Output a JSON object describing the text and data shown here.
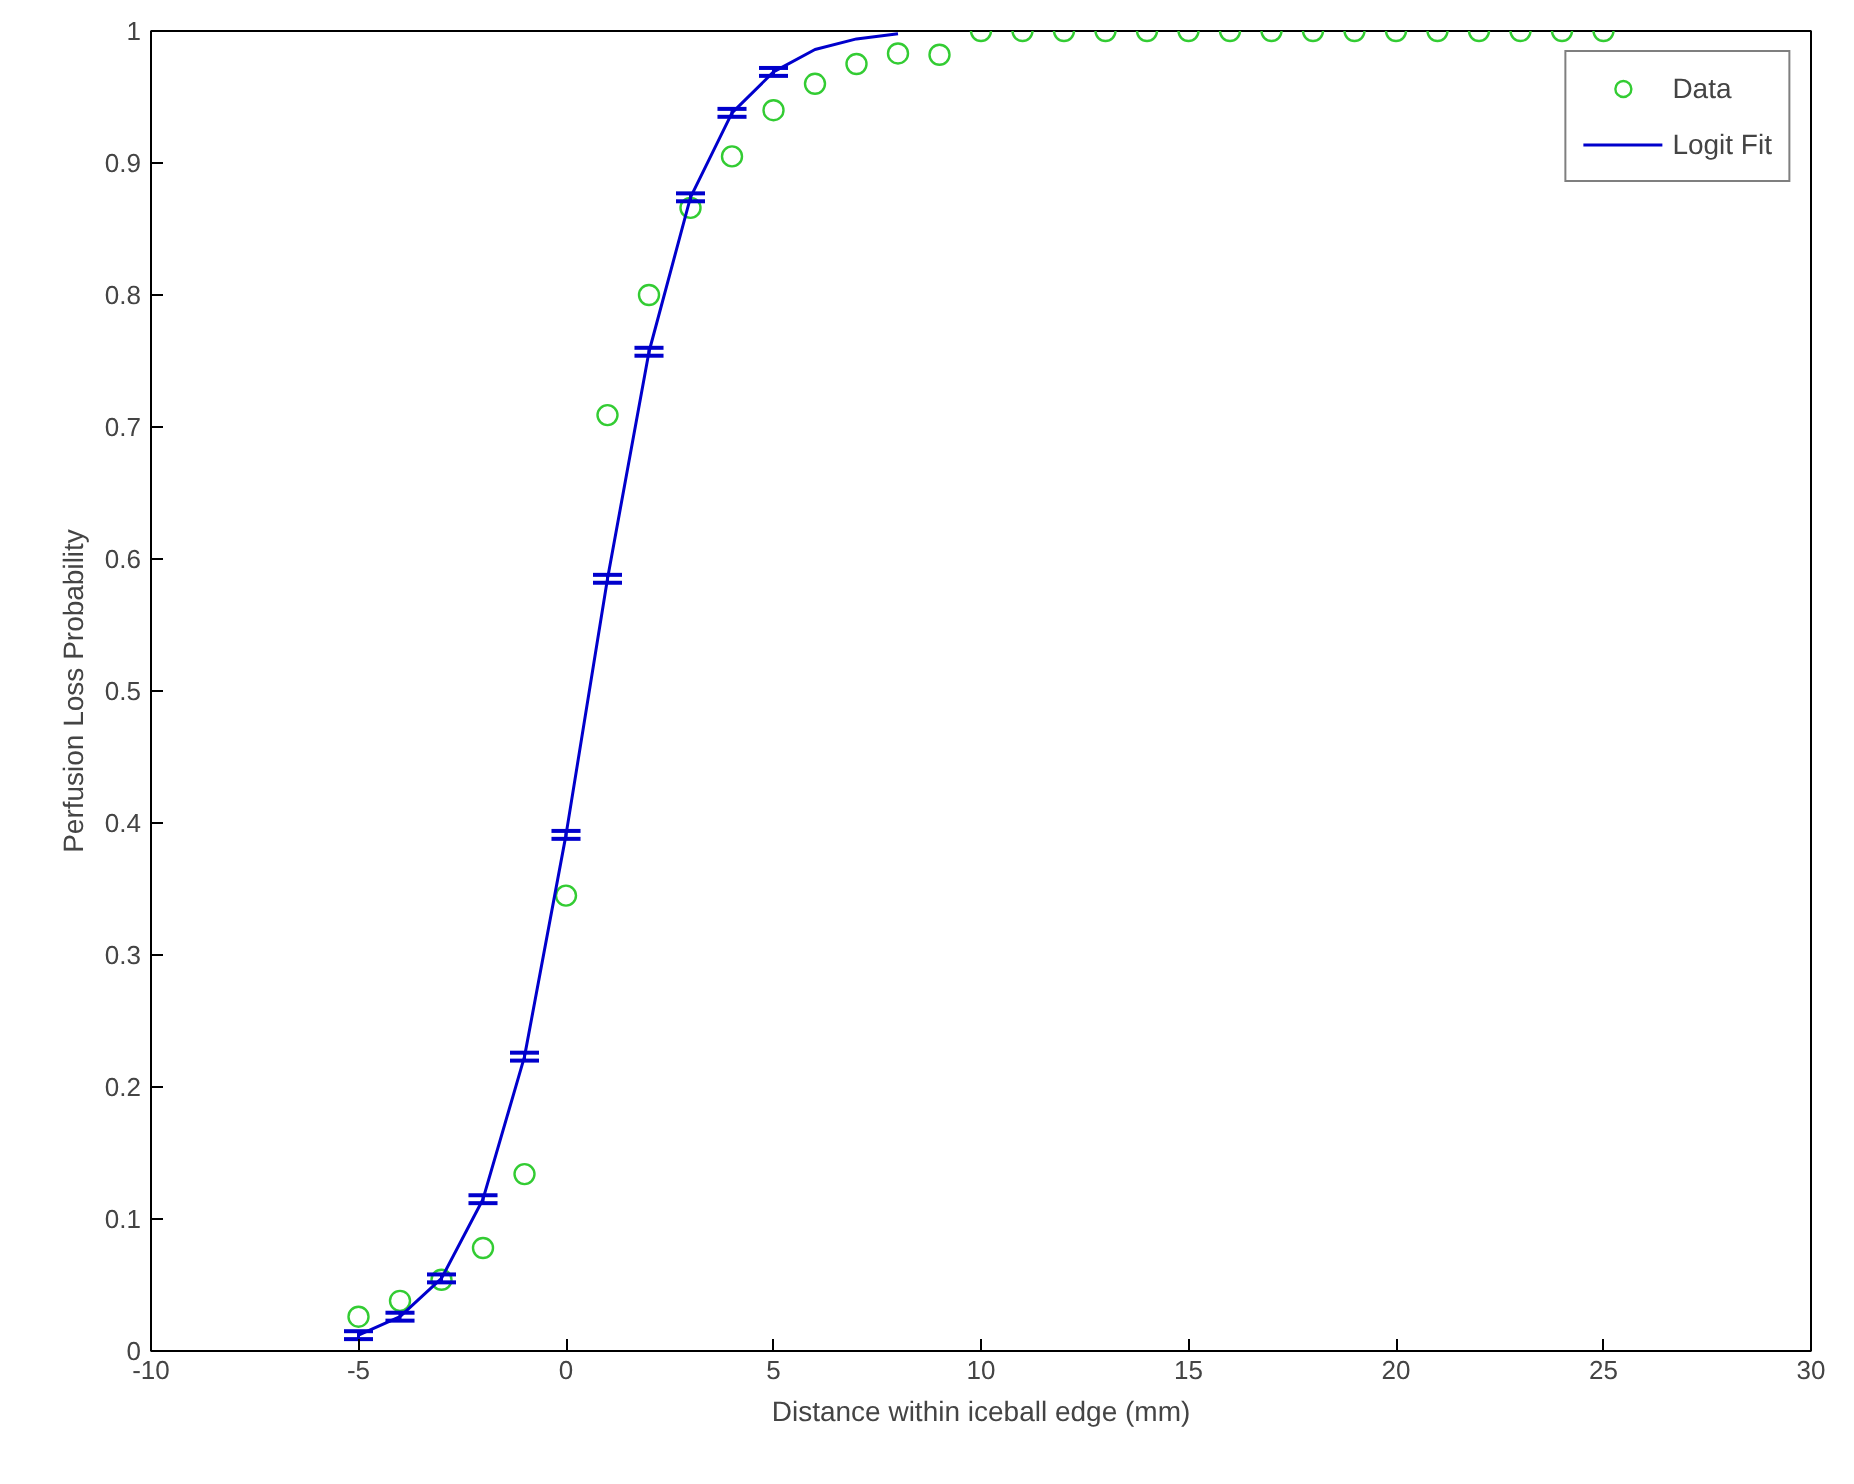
{
  "chart_data": {
    "type": "scatter",
    "xlabel": "Distance within iceball edge (mm)",
    "ylabel": "Perfusion Loss Probability",
    "xlim": [
      -10,
      30
    ],
    "xticks": [
      -10,
      -5,
      0,
      5,
      10,
      15,
      20,
      25,
      30
    ],
    "ylim": [
      0,
      1
    ],
    "yticks": [
      0,
      0.1,
      0.2,
      0.3,
      0.4,
      0.5,
      0.6,
      0.7,
      0.8,
      0.9,
      1
    ],
    "grid": false,
    "legend": "top right",
    "marker": "circle",
    "series": [
      {
        "name": "Data",
        "color": "#33cc33",
        "x": [
          -5,
          -4,
          -3,
          -2,
          -1,
          0,
          1,
          2,
          3,
          4,
          5,
          6,
          7,
          8,
          9,
          10,
          11,
          12,
          13,
          14,
          15,
          16,
          17,
          18,
          19,
          20,
          21,
          22,
          23,
          24,
          25
        ],
        "values": [
          0.026,
          0.038,
          0.054,
          0.078,
          0.134,
          0.345,
          0.709,
          0.8,
          0.866,
          0.905,
          0.94,
          0.96,
          0.975,
          0.983,
          0.982,
          1,
          1,
          1,
          1,
          1,
          1,
          1,
          1,
          1,
          1,
          1,
          1,
          1,
          1,
          1,
          1
        ]
      },
      {
        "name": "Logit Fit",
        "type": "line",
        "color": "#0000cc",
        "marker": "none",
        "line_style": "solid",
        "x": [
          -5,
          -4,
          -3,
          -2,
          -1,
          0,
          1,
          2,
          3,
          4,
          5,
          6,
          7,
          8
        ],
        "values": [
          0.012,
          0.026,
          0.055,
          0.115,
          0.223,
          0.391,
          0.585,
          0.757,
          0.874,
          0.938,
          0.969,
          0.986,
          0.994,
          0.998
        ],
        "errors": [
          0.003,
          0.003,
          0.003,
          0.003,
          0.003,
          0.003,
          0.003,
          0.003,
          0.003,
          0.003,
          0.003,
          null,
          null,
          null
        ]
      }
    ]
  }
}
